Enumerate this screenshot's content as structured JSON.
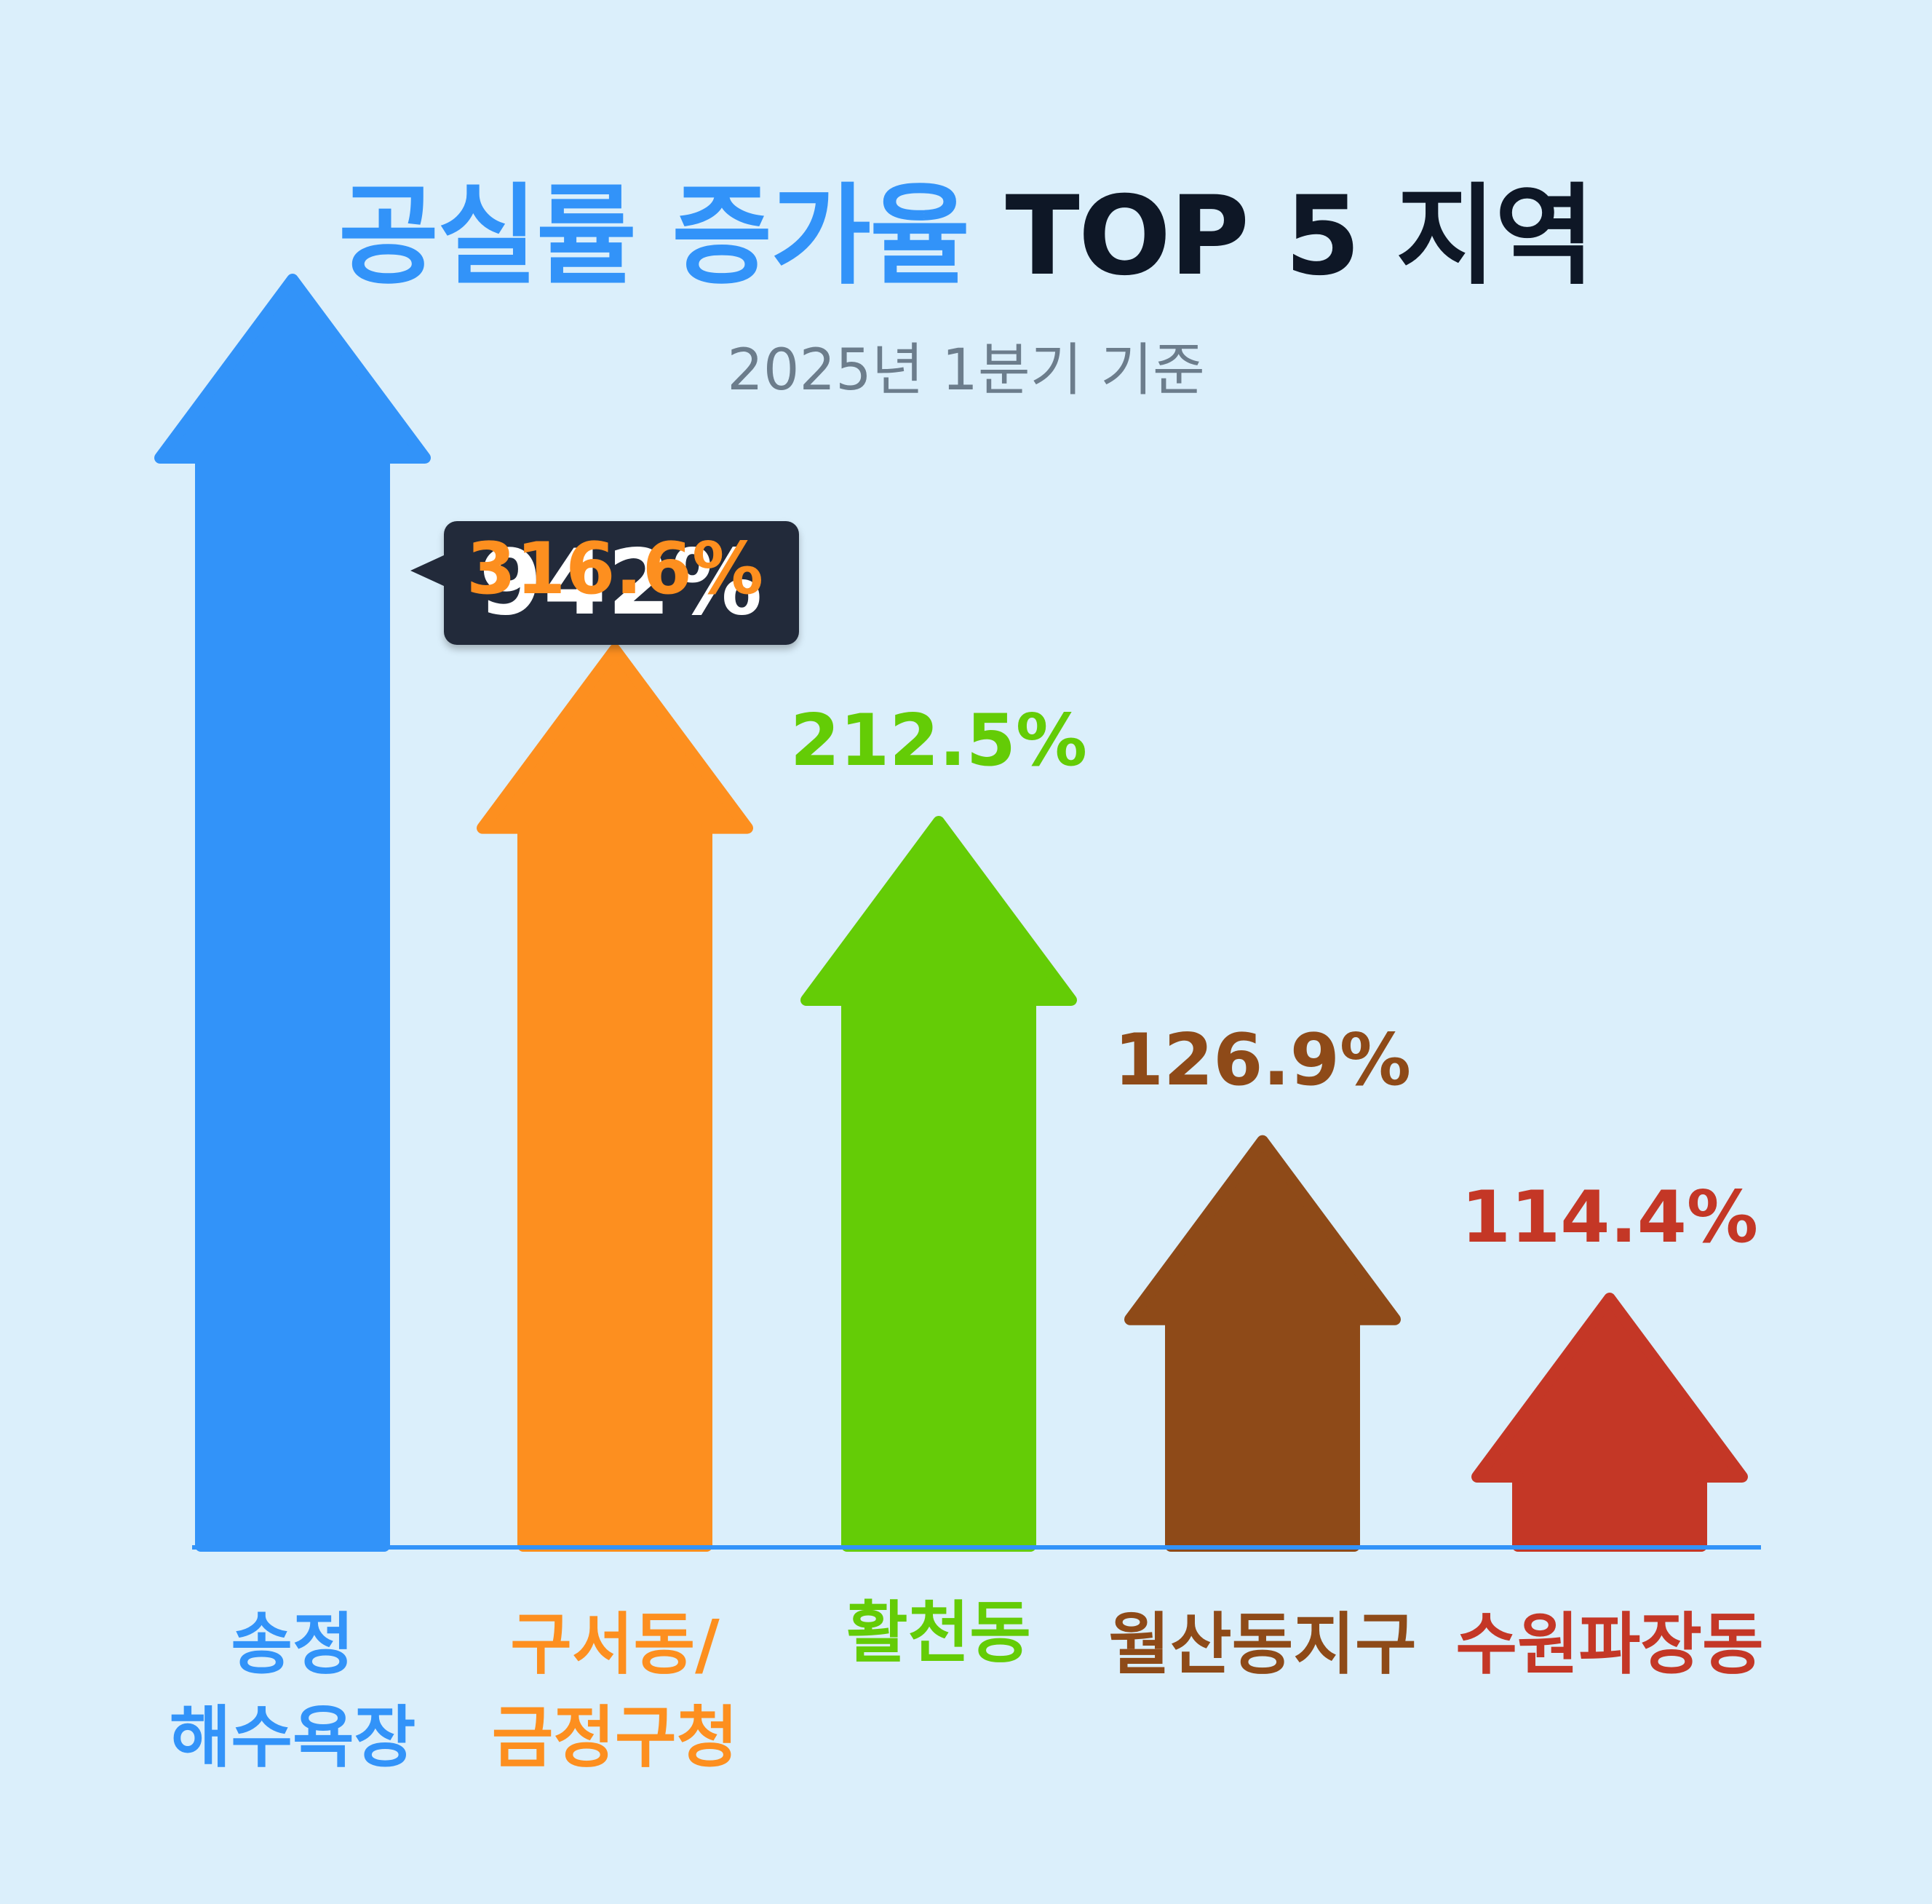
{
  "title": {
    "highlight": "공실률 증가율",
    "rest": "TOP 5 지역"
  },
  "subtitle": "2025년 1분기 기준",
  "chart_data": {
    "type": "bar",
    "categories": [
      "송정\n해수욕장",
      "구서동/\n금정구청",
      "활천동",
      "월산동지구",
      "수원파장동"
    ],
    "values": [
      942,
      316.6,
      212.5,
      126.9,
      114.4
    ],
    "value_labels": [
      "942%",
      "316.6%",
      "212.5%",
      "126.9%",
      "114.4%"
    ],
    "colors": [
      "#3293f9",
      "#fd8f1f",
      "#64cc06",
      "#8e4a18",
      "#c43726"
    ],
    "title": "공실률 증가율 TOP 5 지역",
    "subtitle": "2025년 1분기 기준",
    "grid": false,
    "legend": "none"
  }
}
